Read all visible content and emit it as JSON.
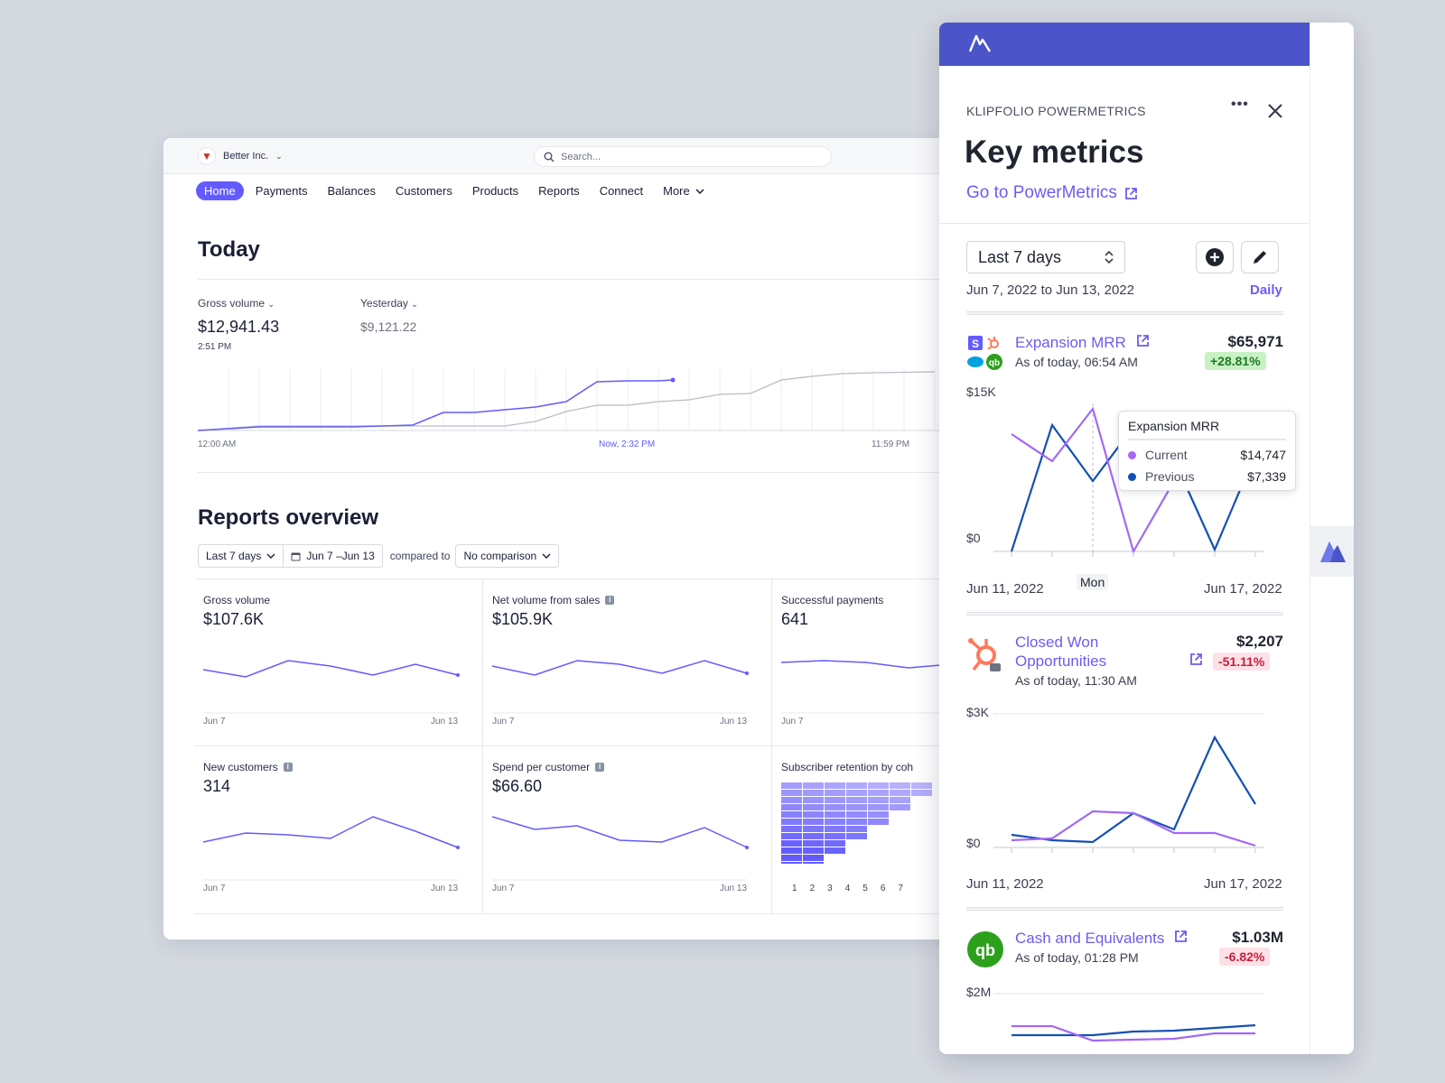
{
  "dashboard": {
    "org_name": "Better Inc.",
    "search_placeholder": "Search...",
    "nav": [
      "Home",
      "Payments",
      "Balances",
      "Customers",
      "Products",
      "Reports",
      "Connect",
      "More"
    ],
    "today": {
      "title": "Today",
      "gross_volume_label": "Gross volume",
      "gross_volume_value": "$12,941.43",
      "gross_volume_time": "2:51 PM",
      "yesterday_label": "Yesterday",
      "yesterday_value": "$9,121.22",
      "axis_start": "12:00 AM",
      "axis_now": "Now, 2:32 PM",
      "axis_end": "11:59 PM"
    },
    "reports": {
      "title": "Reports overview",
      "range": "Last 7 days",
      "dates": "Jun 7 –Jun 13",
      "compared_to": "compared to",
      "comparison": "No comparison",
      "cards": [
        {
          "title": "Gross volume",
          "value": "$107.6K",
          "start": "Jun 7",
          "end": "Jun 13"
        },
        {
          "title": "Net volume from sales",
          "value": "$105.9K",
          "start": "Jun 7",
          "end": "Jun 13"
        },
        {
          "title": "Successful payments",
          "value": "641",
          "start": "Jun 7",
          "end": ""
        },
        {
          "title": "New customers",
          "value": "314",
          "start": "Jun 7",
          "end": "Jun 13"
        },
        {
          "title": "Spend per customer",
          "value": "$66.60",
          "start": "Jun 7",
          "end": "Jun 13"
        },
        {
          "title": "Subscriber retention by coh"
        }
      ],
      "cohort_axis": [
        "1",
        "2",
        "3",
        "4",
        "5",
        "6",
        "7"
      ]
    }
  },
  "panel": {
    "brand": "KLIPFOLIO POWERMETRICS",
    "title": "Key metrics",
    "link": "Go to PowerMetrics",
    "range": "Last 7 days",
    "date_range": "Jun 7, 2022 to Jun 13, 2022",
    "granularity": "Daily",
    "metrics": [
      {
        "name": "Expansion MRR",
        "as_of": "As of today, 06:54 AM",
        "value": "$65,971",
        "change": "+28.81%",
        "y_top": "$15K",
        "y_bottom": "$0",
        "x_start": "Jun 11, 2022",
        "x_end": "Jun 17, 2022",
        "hover_label": "Mon",
        "tooltip": {
          "title": "Expansion MRR",
          "current_label": "Current",
          "current_value": "$14,747",
          "previous_label": "Previous",
          "previous_value": "$7,339"
        }
      },
      {
        "name_line1": "Closed Won",
        "name_line2": "Opportunities",
        "as_of": "As of today, 11:30 AM",
        "value": "$2,207",
        "change": "-51.11%",
        "y_top": "$3K",
        "y_bottom": "$0",
        "x_start": "Jun 11, 2022",
        "x_end": "Jun 17, 2022"
      },
      {
        "name": "Cash and Equivalents",
        "as_of": "As of today, 01:28 PM",
        "value": "$1.03M",
        "change": "-6.82%",
        "y_top": "$2M"
      }
    ]
  },
  "colors": {
    "stripe_accent": "#635bff",
    "panel_header": "#4b55c9",
    "current_series": "#a368f5",
    "previous_series": "#1450b4",
    "link": "#6f5bf0"
  },
  "icons": [
    "chevron-down-icon",
    "search-icon",
    "calendar-icon",
    "info-icon",
    "powermetrics-logo-icon",
    "more-icon",
    "close-icon",
    "external-link-icon",
    "up-down-icon",
    "plus-circle-icon",
    "pencil-icon",
    "stripe-icon",
    "hubspot-icon",
    "salesforce-icon",
    "quickbooks-icon"
  ]
}
